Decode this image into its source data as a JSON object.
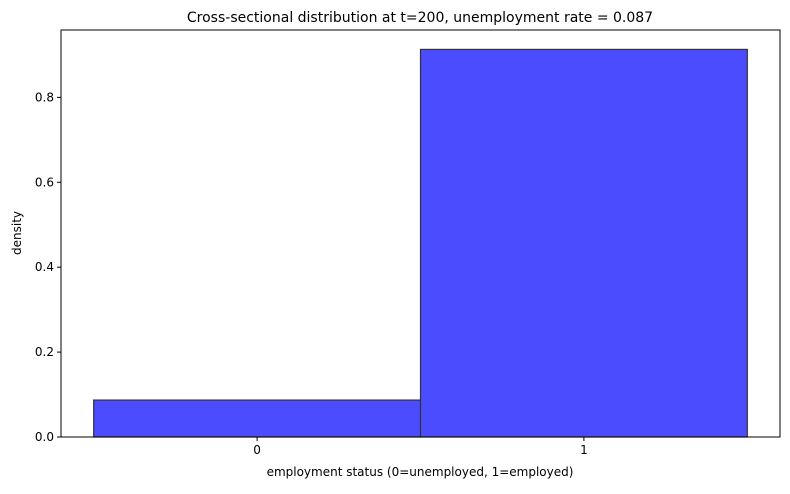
{
  "chart_data": {
    "type": "bar",
    "title": "Cross-sectional distribution at t=200, unemployment rate = 0.087",
    "xlabel": "employment status (0=unemployed, 1=employed)",
    "ylabel": "density",
    "categories": [
      "0",
      "1"
    ],
    "bin_edges": [
      -0.5,
      0.5,
      1.5
    ],
    "values": [
      0.087,
      0.913
    ],
    "xlim": [
      -0.6,
      1.6
    ],
    "ylim": [
      0,
      0.9587
    ],
    "x_ticks": [
      0,
      1
    ],
    "x_tick_labels": [
      "0",
      "1"
    ],
    "y_ticks": [
      0,
      0.2,
      0.4,
      0.6,
      0.8
    ],
    "y_tick_labels": [
      "0.0",
      "0.2",
      "0.4",
      "0.6",
      "0.8"
    ],
    "grid": false,
    "bar_color": "#4c4cff",
    "edge_color": "#333333"
  }
}
